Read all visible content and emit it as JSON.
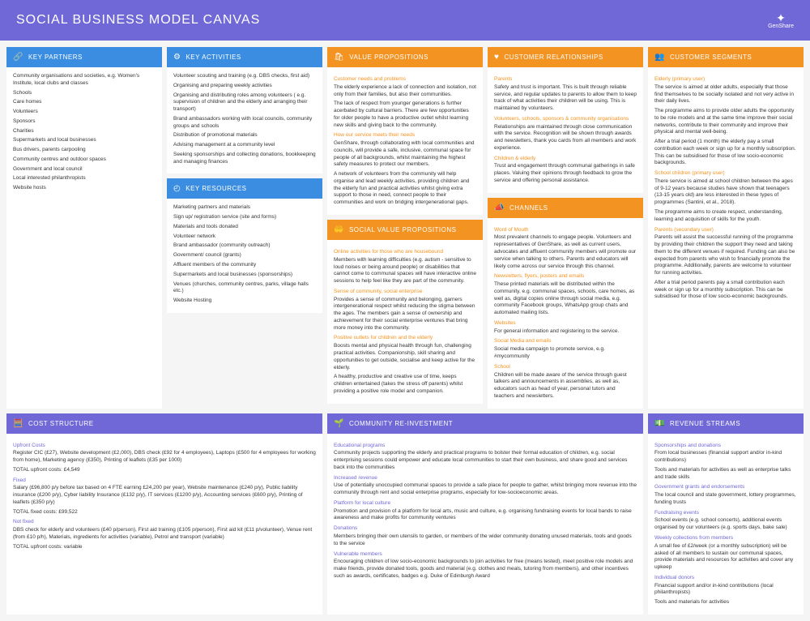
{
  "title": "SOCIAL BUSINESS MODEL CANVAS",
  "brand": "GenShare",
  "colors": {
    "blue": "#3a8de0",
    "orange": "#f39322",
    "purple": "#6f68d6",
    "bg": "#f5f5f5",
    "card": "#ffffff"
  },
  "partners": {
    "label": "KEY PARTNERS",
    "items": [
      "Community organisations and societies, e.g. Women's Institute, local clubs and classes",
      "Schools",
      "Care homes",
      "Volunteers",
      "Sponsors",
      "Charities",
      "Supermarkets and local businesses",
      "Bus drivers, parents carpooling",
      "Community centres and outdoor spaces",
      "Government and local council",
      "Local interested philanthropists",
      "Website hosts"
    ]
  },
  "activities": {
    "label": "KEY ACTIVITIES",
    "items": [
      "Volunteer scouting and training (e.g. DBS checks, first aid)",
      "Organising and preparing weekly activities",
      "Organising and distributing roles among volunteers ( e.g. supervision of children and the elderly and arranging their transport)",
      "Brand ambassadors working with local councils, community groups and schools",
      "Distribution of promotional materials",
      "Advising management at a community level",
      "Seeking sponsorships and collecting donations, bookkeeping and managing finances"
    ]
  },
  "resources": {
    "label": "KEY RESOURCES",
    "items": [
      "Marketing partners and materials",
      "Sign up/ registration service (site and forms)",
      "Materials and tools donated",
      "Volunteer network",
      "Brand ambassador (community outreach)",
      "Government/ council (grants)",
      "Affluent members of the community",
      "Supermarkets and local businesses (sponsorships)",
      "Venues (churches, community centres, parks, village halls etc.)",
      "Website Hosting"
    ]
  },
  "value": {
    "label": "VALUE PROPOSITIONS",
    "h1": "Customer needs and problems",
    "p1": "The elderly experience a lack of connection and isolation, not only from their families, but also their communities.",
    "p1b": "The lack of respect from younger generations is further acerbated by cultural barriers. There are few opportunities for older people to have a productive outlet whilst learning new skills and giving back to the community.",
    "h2": "How our service meets their needs",
    "p2": "GenShare, through collaborating with local communities and councils, will provide a safe, inclusive, communal space for people of all backgrounds, whilst maintaining the highest safety measures to protect our members.",
    "p2b": "A network of volunteers from the community will help organise and lead weekly activities, providing children and the elderly fun and practical activities whilst giving extra support to those in need, connect people to their communities and work on bridging intergenerational gaps."
  },
  "social": {
    "label": "SOCIAL VALUE PROPOSITIONS",
    "h1": "Online activities for those who are housebound",
    "p1": "Members with learning difficulties (e.g. autism - sensitive to loud noises or being around people) or disabilities that cannot come to communal spaces will have interactive online sessions to help feel like they are part of the community.",
    "h2": "Sense of community, social enterprise",
    "p2": "Provides a sense of community and belonging, garners intergenerational respect whilst reducing the stigma between the ages. The members gain a sense of ownership and achievement for their social enterprise ventures that bring more money into the community.",
    "h3": "Positive outlets for children and the elderly",
    "p3": "Boosts mental and physical health through fun, challenging practical activities. Companionship, skill sharing and opportunities to get outside, socialise and keep active for the elderly.",
    "p3b": "A healthy, productive and creative use of time, keeps children entertained (takes the stress off parents) whilst providing a positive role model and companion."
  },
  "relationships": {
    "label": "CUSTOMER RELATIONSHIPS",
    "h1": "Parents",
    "p1": "Safety and trust is important. This is built through reliable service, and regular updates to parents to allow them to keep track of what activities their children will be using. This is maintained by volunteers.",
    "h2": "Volunteers, schools, sponsors & community organisations",
    "p2": "Relationships are maintained through close communication with the service. Recognition will be shown through awards and newsletters, thank you cards from all members and work experience.",
    "h3": "Children & elderly",
    "p3": "Trust and engagement through communal gatherings in safe places. Valuing their opinions through feedback to grow the service and offering personal assistance."
  },
  "channels": {
    "label": "CHANNELS",
    "h1": "Word of Mouth",
    "p1": "Most prevalent channels to engage people. Volunteers and representatives of GenShare, as well as current users, advocates and affluent community members will promote our service when talking to others. Parents and educators will likely come across our service through this channel.",
    "h2": "Newsletters, flyers, posters and emails",
    "p2": "These printed materials will be distributed within the community, e.g. communal spaces, schools, care homes, as well as, digital copies online through social media, e.g. community Facebook groups, WhatsApp group chats and automated mailing lists.",
    "h3": "Websites",
    "p3": "For general information and registering to the service.",
    "h4": "Social Media and emails",
    "p4": "Social media campaign to promote service, e.g. #mycommunity",
    "h5": "School",
    "p5": "Children will be made aware of the service through guest talkers and announcements in assemblies, as well as, educators such as head of year, personal tutors and teachers and newsletters."
  },
  "segments": {
    "label": "CUSTOMER SEGMENTS",
    "h1": "Elderly (primary user)",
    "p1": "The service is aimed at older adults, especially that those find themselves to be socially isolated and not very active in their daily lives.",
    "p1b": "The programme aims to provide older adults the opportunity to be role models and at the same time improve their social networks, contribute to their community and improve their physical and mental well-being.",
    "p1c": "After a trial period (1 month) the elderly pay a small contribution each week or sign up for a monthly subscription. This can be subsidised for those of low socio-economic backgrounds.",
    "h2": "School children (primary user)",
    "p2": "There service is aimed at school children between the ages of 9-12 years because studies have shown that teenagers (13-15 years old) are less interested in these types of programmes (Santini, et al., 2018).",
    "p2b": "The programme aims to create respect, understanding, learning and acquisition of skills for the youth.",
    "h3": "Parents (secondary user)",
    "p3": "Parents will assist the successful running of the programme by providing their children the support they need and taking them to the different venues if required. Funding can also be expected from parents who wish to financially promote the programme. Additionally, parents are welcome to volunteer for running activities.",
    "p3b": "After a trial period parents pay a small contribution each week or sign up for a monthly subscription. This can be subsidised for those of low socio-economic backgrounds."
  },
  "cost": {
    "label": "COST STRUCTURE",
    "h1": "Upfront Costs",
    "p1": "Register CIC (£27), Website development (£2,000), DBS check (£92 for 4 employees), Laptops (£500 for 4 employees for working from home), Marketing agency (£350), Printing of leaflets (£35 per 1000)",
    "t1": "TOTAL upfront costs: £4,549",
    "h2": "Fixed",
    "p2": "Salary (£96,800 p/y before tax based on 4 FTE earning £24,200 per year), Website maintenance (£240 p/y), Public liability insurance (£200 p/y), Cyber liability Insurance (£132 p/y), IT services (£1200 p/y), Accounting services (£600 p/y), Printing of leaflets (£350 p/y)",
    "t2": "TOTAL fixed costs: £99,522",
    "h3": "Not fixed",
    "p3": "DBS check for elderly and volunteers (£40 p/person), First aid training (£105 p/person), First aid kit (£11 p/volunteer), Venue rent (from £10 p/h), Materials, ingredients for activities (variable), Petrol and transport (variable)",
    "t3": "TOTAL upfront costs: variable"
  },
  "community": {
    "label": "COMMUNITY RE-INVESTMENT",
    "h1": "Educational programs",
    "p1": "Community projects supporting the elderly and practical programs to bolster their formal education of children, e.g. social enterprising sessions could empower and educate local communities to start their own business, and share good and services back into the communities",
    "h2": "Increased revenue",
    "p2": "Use of potentially unoccupied communal spaces to provide a safe place for people to gather, whilst bringing more revenue into the community through rent and social enterprise programs, especially for low-socioeconomic areas.",
    "h3": "Platform for local culture",
    "p3": "Promotion and provision of a platform for local arts, music and culture, e.g. organising fundraising events for local bands to raise awareness and make profits for community ventures",
    "h4": "Donations",
    "p4": "Members bringing their own utensils to garden, or members of the wider community donating unused materials, tools and goods to the service",
    "h5": "Vulnerable members",
    "p5": "Encouraging children of low socio-economic backgrounds to join activities for free (means tested), meet positive role models and make friends, provide donated tools, goods and material (e.g. clothes and meals, tutoring from members), and other incentives such as awards, certificates, badges e.g. Duke of Edinburgh Award"
  },
  "revenue": {
    "label": "REVENUE STREAMS",
    "h1": "Sponsorships and donations",
    "p1": "From local businesses (financial support and/or in-kind contributions)",
    "p1b": "Tools and materials for activities as well as enterprise talks and trade skills",
    "h2": "Government grants and endorsements",
    "p2": "The local council and state government, lottery programmes, funding trusts",
    "h3": "Fundraising events",
    "p3": "School events (e.g. school concerts), additional events organised by our volunteers (e.g. sports days, bake sale)",
    "h4": "Weekly collections from members",
    "p4": "A small fee of £2/week (or a monthly subscription) will be asked of all members to sustain our communal spaces, provide materials and resources for activities and cover any upkeep",
    "h5": "Individual donors",
    "p5": "Financial support and/or in-kind contributions (local philanthropists)",
    "p5b": "Tools and materials for activities"
  }
}
